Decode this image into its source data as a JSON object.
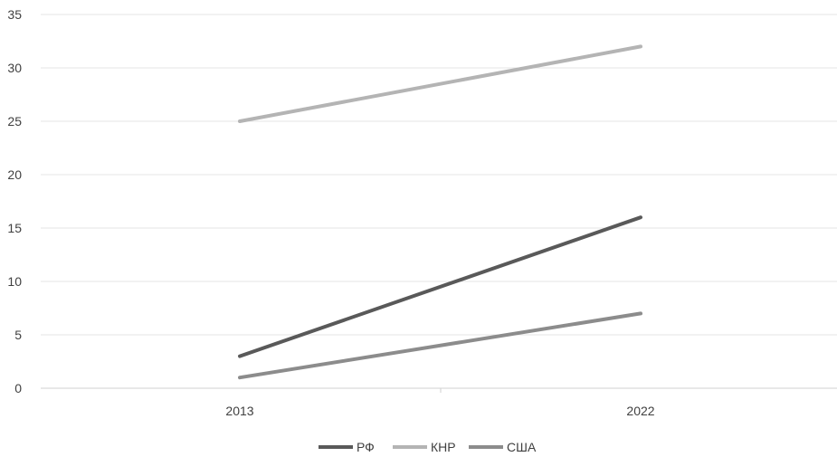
{
  "chart_data": {
    "type": "line",
    "categories": [
      "2013",
      "2022"
    ],
    "series": [
      {
        "name": "РФ",
        "values": [
          3,
          16
        ],
        "color": "#595959"
      },
      {
        "name": "КНР",
        "values": [
          25,
          32
        ],
        "color": "#b4b4b4"
      },
      {
        "name": "США",
        "values": [
          1,
          7
        ],
        "color": "#8c8c8c"
      }
    ],
    "ylim": [
      0,
      35
    ],
    "yticks": [
      0,
      5,
      10,
      15,
      20,
      25,
      30,
      35
    ],
    "grid": true,
    "legend_position": "bottom"
  }
}
